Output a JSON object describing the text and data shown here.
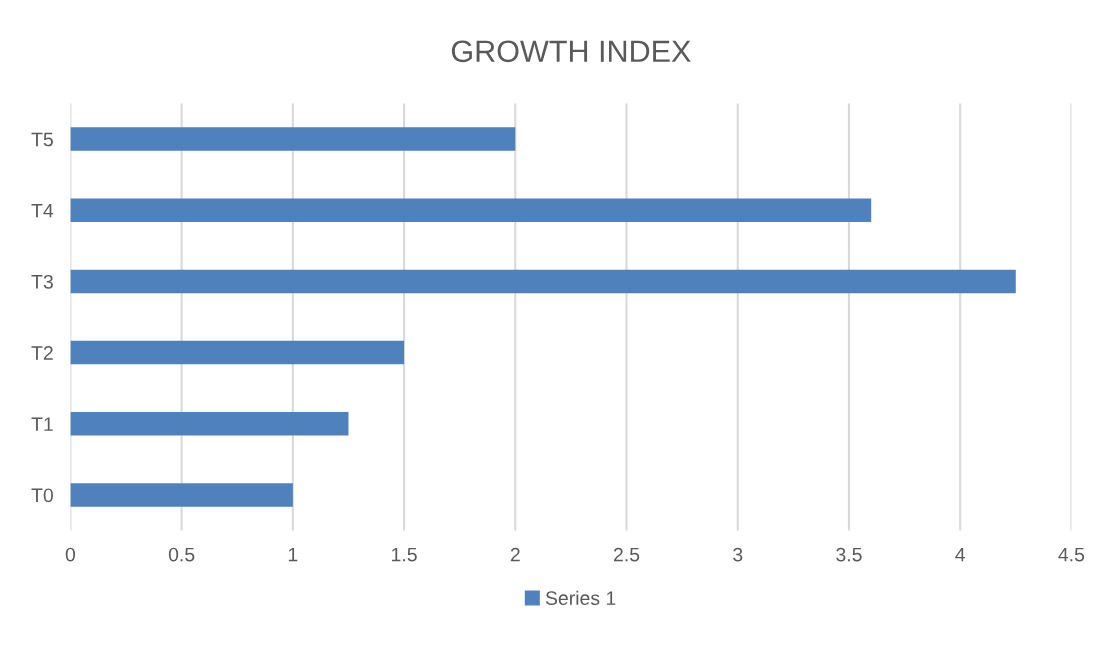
{
  "chart_data": {
    "type": "bar",
    "orientation": "horizontal",
    "title": "GROWTH INDEX",
    "categories": [
      "T5",
      "T4",
      "T3",
      "T2",
      "T1",
      "T0"
    ],
    "series": [
      {
        "name": "Series 1",
        "color": "#4f81bd",
        "values": [
          2,
          3.6,
          4.25,
          1.5,
          1.25,
          1
        ]
      }
    ],
    "xlim": [
      0,
      4.5
    ],
    "xticks": [
      0,
      0.5,
      1,
      1.5,
      2,
      2.5,
      3,
      3.5,
      4,
      4.5
    ],
    "grid": "x",
    "legend": "bottom"
  }
}
